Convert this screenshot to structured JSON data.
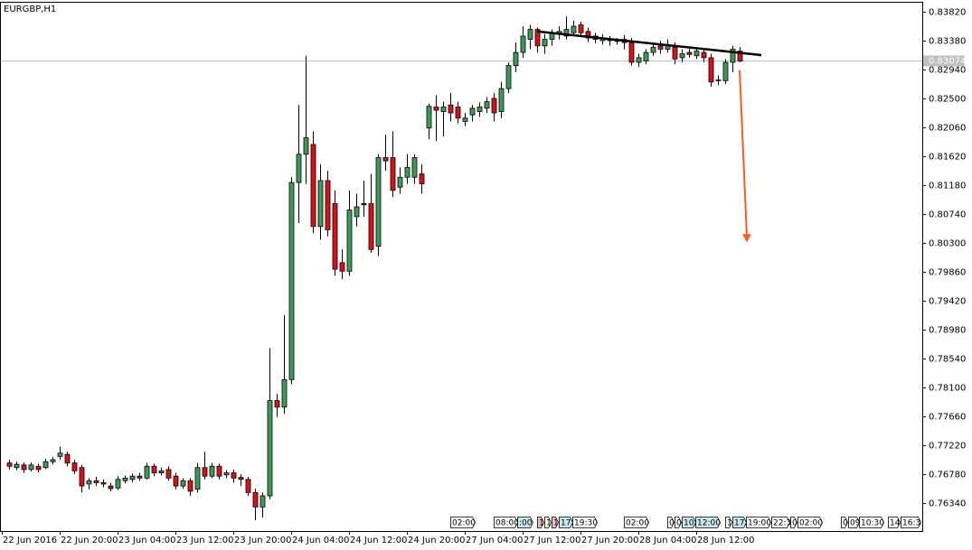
{
  "chart_data": {
    "type": "candlestick",
    "title": "EURGBP,H1",
    "ohlc": [
      [
        0.7695,
        0.77,
        0.7685,
        0.769
      ],
      [
        0.7688,
        0.7697,
        0.7684,
        0.7693
      ],
      [
        0.7692,
        0.7696,
        0.768,
        0.7685
      ],
      [
        0.7685,
        0.7696,
        0.7682,
        0.7692
      ],
      [
        0.769,
        0.7694,
        0.7681,
        0.7685
      ],
      [
        0.7688,
        0.7701,
        0.7686,
        0.7697
      ],
      [
        0.7697,
        0.7704,
        0.7693,
        0.77
      ],
      [
        0.7705,
        0.772,
        0.77,
        0.771
      ],
      [
        0.7708,
        0.7712,
        0.769,
        0.7695
      ],
      [
        0.7695,
        0.77,
        0.7678,
        0.7683
      ],
      [
        0.7688,
        0.7692,
        0.765,
        0.766
      ],
      [
        0.7663,
        0.7672,
        0.7655,
        0.7668
      ],
      [
        0.7668,
        0.7674,
        0.766,
        0.7665
      ],
      [
        0.7665,
        0.767,
        0.7658,
        0.7663
      ],
      [
        0.766,
        0.7665,
        0.7652,
        0.7656
      ],
      [
        0.7657,
        0.7675,
        0.7654,
        0.767
      ],
      [
        0.7668,
        0.7676,
        0.7664,
        0.7672
      ],
      [
        0.767,
        0.7679,
        0.7666,
        0.7675
      ],
      [
        0.7675,
        0.768,
        0.7668,
        0.7672
      ],
      [
        0.7672,
        0.7695,
        0.767,
        0.769
      ],
      [
        0.769,
        0.7694,
        0.7675,
        0.768
      ],
      [
        0.768,
        0.7688,
        0.7676,
        0.7683
      ],
      [
        0.7685,
        0.769,
        0.7668,
        0.7672
      ],
      [
        0.7675,
        0.768,
        0.7655,
        0.766
      ],
      [
        0.766,
        0.7672,
        0.7656,
        0.7668
      ],
      [
        0.7668,
        0.7672,
        0.7645,
        0.7652
      ],
      [
        0.7655,
        0.7695,
        0.765,
        0.7688
      ],
      [
        0.7688,
        0.7712,
        0.767,
        0.7675
      ],
      [
        0.7675,
        0.7695,
        0.7672,
        0.769
      ],
      [
        0.769,
        0.7694,
        0.767,
        0.7675
      ],
      [
        0.7677,
        0.7684,
        0.7672,
        0.768
      ],
      [
        0.768,
        0.7685,
        0.7665,
        0.7672
      ],
      [
        0.7673,
        0.7678,
        0.766,
        0.767
      ],
      [
        0.767,
        0.7674,
        0.7645,
        0.765
      ],
      [
        0.765,
        0.7656,
        0.7608,
        0.7628
      ],
      [
        0.7628,
        0.765,
        0.7612,
        0.7645
      ],
      [
        0.7645,
        0.787,
        0.764,
        0.779
      ],
      [
        0.779,
        0.78,
        0.7765,
        0.778
      ],
      [
        0.778,
        0.792,
        0.777,
        0.7822
      ],
      [
        0.7822,
        0.813,
        0.7815,
        0.8122
      ],
      [
        0.8122,
        0.824,
        0.806,
        0.8165
      ],
      [
        0.8165,
        0.8315,
        0.812,
        0.819
      ],
      [
        0.818,
        0.82,
        0.8045,
        0.8055
      ],
      [
        0.8055,
        0.815,
        0.8035,
        0.8125
      ],
      [
        0.8125,
        0.814,
        0.804,
        0.805
      ],
      [
        0.809,
        0.811,
        0.798,
        0.799
      ],
      [
        0.8,
        0.802,
        0.7975,
        0.7987
      ],
      [
        0.7987,
        0.811,
        0.798,
        0.808
      ],
      [
        0.807,
        0.8105,
        0.8055,
        0.8085
      ],
      [
        0.809,
        0.8125,
        0.807,
        0.8088
      ],
      [
        0.809,
        0.8135,
        0.8015,
        0.802
      ],
      [
        0.8025,
        0.8165,
        0.801,
        0.816
      ],
      [
        0.816,
        0.8195,
        0.814,
        0.8155
      ],
      [
        0.816,
        0.82,
        0.81,
        0.811
      ],
      [
        0.8115,
        0.8145,
        0.8105,
        0.813
      ],
      [
        0.813,
        0.8165,
        0.812,
        0.8145
      ],
      [
        0.813,
        0.8165,
        0.812,
        0.816
      ],
      [
        0.8135,
        0.815,
        0.8105,
        0.812
      ],
      [
        0.8205,
        0.8242,
        0.8188,
        0.8238
      ],
      [
        0.8237,
        0.8255,
        0.8185,
        0.8232
      ],
      [
        0.823,
        0.8245,
        0.8192,
        0.8237
      ],
      [
        0.824,
        0.8258,
        0.8215,
        0.8228
      ],
      [
        0.8237,
        0.8245,
        0.8212,
        0.822
      ],
      [
        0.8215,
        0.8228,
        0.8208,
        0.822
      ],
      [
        0.8225,
        0.824,
        0.8215,
        0.8235
      ],
      [
        0.823,
        0.8244,
        0.8222,
        0.8237
      ],
      [
        0.8235,
        0.8252,
        0.8228,
        0.8245
      ],
      [
        0.825,
        0.8258,
        0.8215,
        0.8228
      ],
      [
        0.823,
        0.8275,
        0.822,
        0.8265
      ],
      [
        0.8265,
        0.8305,
        0.8258,
        0.83
      ],
      [
        0.83,
        0.8335,
        0.829,
        0.832
      ],
      [
        0.832,
        0.836,
        0.8312,
        0.8345
      ],
      [
        0.834,
        0.8362,
        0.8325,
        0.8355
      ],
      [
        0.8355,
        0.8358,
        0.832,
        0.833
      ],
      [
        0.833,
        0.8348,
        0.8318,
        0.834
      ],
      [
        0.834,
        0.8355,
        0.833,
        0.835
      ],
      [
        0.8348,
        0.836,
        0.834,
        0.8352
      ],
      [
        0.8345,
        0.8375,
        0.834,
        0.8355
      ],
      [
        0.835,
        0.8368,
        0.8345,
        0.836
      ],
      [
        0.8362,
        0.8367,
        0.8345,
        0.835
      ],
      [
        0.8352,
        0.8358,
        0.8336,
        0.8342
      ],
      [
        0.8345,
        0.835,
        0.8334,
        0.834
      ],
      [
        0.8338,
        0.8348,
        0.8332,
        0.8342
      ],
      [
        0.834,
        0.8345,
        0.833,
        0.8338
      ],
      [
        0.8338,
        0.8342,
        0.8332,
        0.8338
      ],
      [
        0.834,
        0.8346,
        0.8325,
        0.8335
      ],
      [
        0.8335,
        0.8342,
        0.83,
        0.8305
      ],
      [
        0.8305,
        0.8318,
        0.8298,
        0.8312
      ],
      [
        0.8307,
        0.8325,
        0.8302,
        0.832
      ],
      [
        0.832,
        0.8332,
        0.8315,
        0.8328
      ],
      [
        0.833,
        0.8338,
        0.8318,
        0.8325
      ],
      [
        0.8325,
        0.834,
        0.832,
        0.833
      ],
      [
        0.8328,
        0.8335,
        0.8302,
        0.831
      ],
      [
        0.8312,
        0.8325,
        0.8305,
        0.8318
      ],
      [
        0.832,
        0.8328,
        0.8312,
        0.8317
      ],
      [
        0.8315,
        0.8328,
        0.831,
        0.8322
      ],
      [
        0.832,
        0.8326,
        0.8305,
        0.8312
      ],
      [
        0.8312,
        0.8318,
        0.8268,
        0.8275
      ],
      [
        0.8278,
        0.8285,
        0.827,
        0.8277
      ],
      [
        0.8277,
        0.831,
        0.8272,
        0.8305
      ],
      [
        0.8305,
        0.833,
        0.829,
        0.8325
      ],
      [
        0.8322,
        0.8328,
        0.8305,
        0.8307
      ]
    ],
    "bull_color": "#3f9a5a",
    "bear_color": "#d9111a",
    "ylim": [
      0.75914,
      0.83971
    ],
    "yticks": [
      {
        "value": 0.8382,
        "label": "0.83820"
      },
      {
        "value": 0.8338,
        "label": "0.83380"
      },
      {
        "value": 0.8294,
        "label": "0.82940"
      },
      {
        "value": 0.825,
        "label": "0.82500"
      },
      {
        "value": 0.8206,
        "label": "0.82060"
      },
      {
        "value": 0.8162,
        "label": "0.81620"
      },
      {
        "value": 0.8118,
        "label": "0.81180"
      },
      {
        "value": 0.8074,
        "label": "0.80740"
      },
      {
        "value": 0.803,
        "label": "0.80300"
      },
      {
        "value": 0.7986,
        "label": "0.79860"
      },
      {
        "value": 0.7942,
        "label": "0.79420"
      },
      {
        "value": 0.7898,
        "label": "0.78980"
      },
      {
        "value": 0.7854,
        "label": "0.78540"
      },
      {
        "value": 0.781,
        "label": "0.78100"
      },
      {
        "value": 0.7766,
        "label": "0.77660"
      },
      {
        "value": 0.7722,
        "label": "0.77220"
      },
      {
        "value": 0.7678,
        "label": "0.76780"
      },
      {
        "value": 0.7634,
        "label": "0.76340"
      }
    ],
    "xticks": [
      {
        "value": 0,
        "label": "22 Jun 2016"
      },
      {
        "value": 8,
        "label": "22 Jun 20:00"
      },
      {
        "value": 16,
        "label": "23 Jun 04:00"
      },
      {
        "value": 24,
        "label": "23 Jun 12:00"
      },
      {
        "value": 32,
        "label": "23 Jun 20:00"
      },
      {
        "value": 40,
        "label": "24 Jun 04:00"
      },
      {
        "value": 48,
        "label": "24 Jun 12:00"
      },
      {
        "value": 56,
        "label": "24 Jun 20:00"
      },
      {
        "value": 64,
        "label": "27 Jun 04:00"
      },
      {
        "value": 72,
        "label": "27 Jun 12:00"
      },
      {
        "value": 80,
        "label": "27 Jun 20:00"
      },
      {
        "value": 88,
        "label": "28 Jun 04:00"
      },
      {
        "value": 96,
        "label": "28 Jun 12:00"
      }
    ],
    "last_price": {
      "value": 0.83074,
      "label": "0.83074"
    },
    "trend_line": {
      "x": [
        73,
        104
      ],
      "y": [
        0.8352,
        0.8316
      ],
      "color": "#000000"
    },
    "arrow": {
      "x": [
        101,
        102
      ],
      "y": [
        0.8293,
        0.8031
      ],
      "color": "#ff5a1f"
    },
    "time_markers": [
      "02:00",
      "08:00",
      ":00",
      "1",
      "1",
      "1",
      "17:",
      "19:30",
      "02:00",
      "0",
      "0",
      "10:",
      "12:00",
      "1",
      "17:",
      "19:00",
      "22:3",
      "0",
      "02:00",
      "0",
      "09",
      "10:30",
      "14",
      "16:3"
    ]
  }
}
